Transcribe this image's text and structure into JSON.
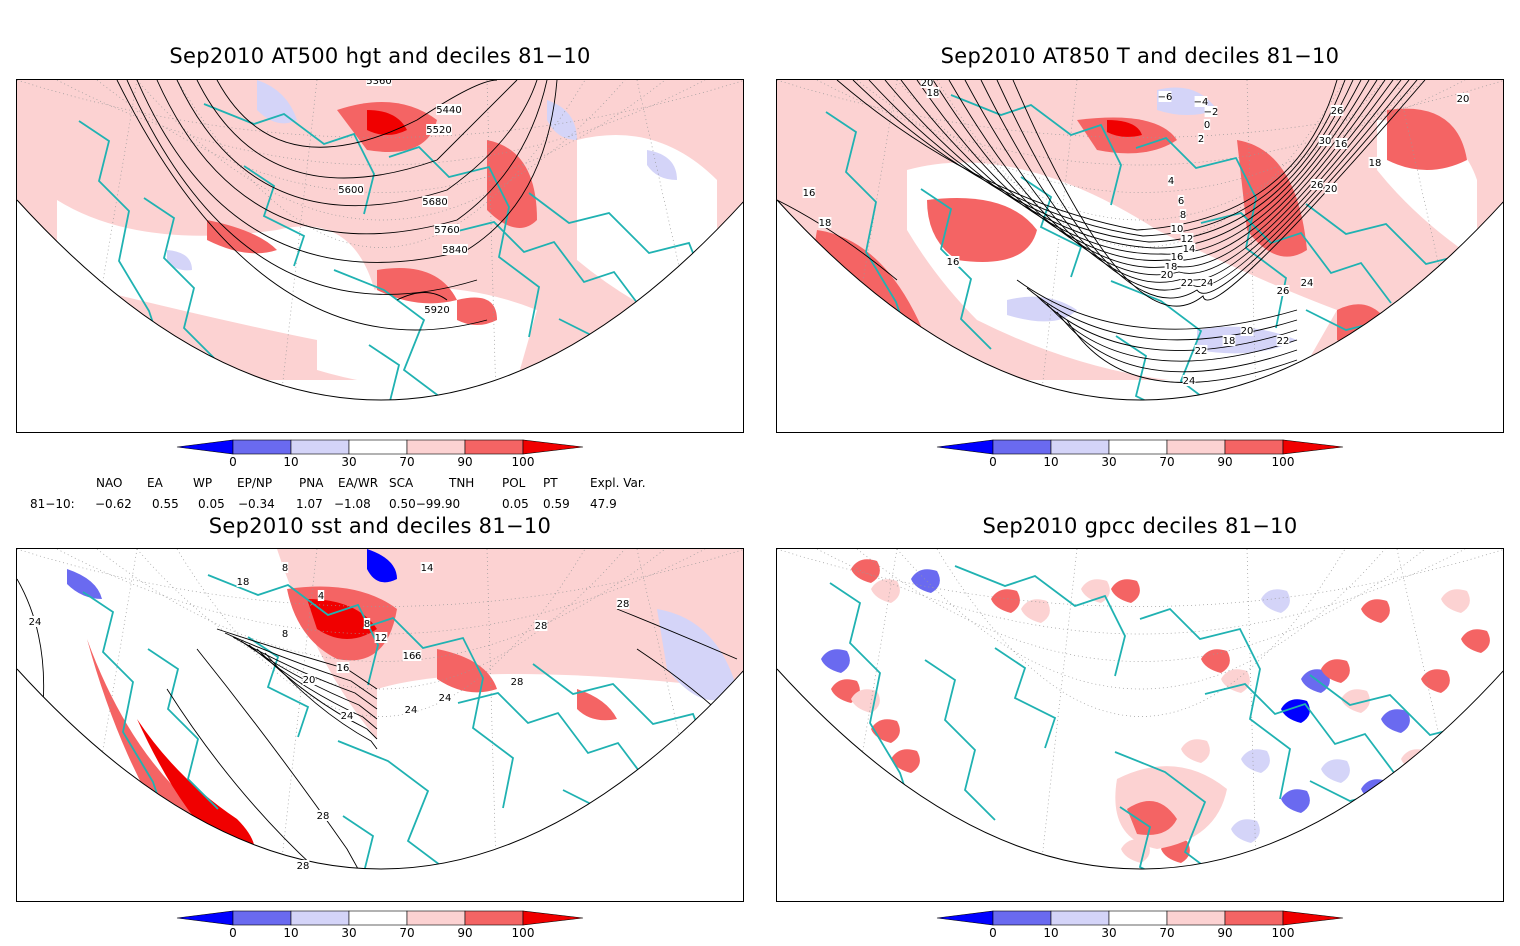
{
  "panels": [
    {
      "title": "Sep2010 AT500 hgt and deciles 81−10",
      "contour_labels": [
        "5360",
        "5440",
        "5520",
        "5600",
        "5680",
        "5760",
        "5840",
        "5920"
      ]
    },
    {
      "title": "Sep2010 AT850 T and deciles 81−10",
      "contour_labels": [
        "20",
        "18",
        "16",
        "18",
        "16",
        "−6",
        "−4",
        "−2",
        "0",
        "2",
        "4",
        "6",
        "8",
        "10",
        "12",
        "14",
        "16",
        "18",
        "20",
        "22",
        "24",
        "26",
        "26",
        "24",
        "22",
        "20",
        "18",
        "22",
        "24",
        "26",
        "30",
        "16",
        "20",
        "18",
        "20"
      ]
    },
    {
      "title": "Sep2010 sst and deciles 81−10",
      "contour_labels": [
        "24",
        "28",
        "18",
        "8",
        "4",
        "8",
        "8",
        "12",
        "16",
        "20",
        "16",
        "24",
        "24",
        "24",
        "28",
        "28",
        "28",
        "28",
        "14",
        "16"
      ]
    },
    {
      "title": "Sep2010 gpcc deciles 81−10",
      "contour_labels": []
    }
  ],
  "colorbar": {
    "labels": [
      "0",
      "10",
      "30",
      "70",
      "90",
      "100"
    ],
    "colors": [
      "#0000ff",
      "#6a6af0",
      "#d4d4f8",
      "#ffffff",
      "#fcd2d2",
      "#f46464",
      "#f00000"
    ]
  },
  "indices": {
    "names": [
      "NAO",
      "EA",
      "WP",
      "EP/NP",
      "PNA",
      "EA/WR",
      "SCA",
      "TNH",
      "POL",
      "PT",
      "Expl. Var."
    ],
    "row_label": "81−10:",
    "values": [
      "−0.62",
      "0.55",
      "0.05",
      "−0.34",
      "1.07",
      "−1.08",
      "0.50−99.90",
      "",
      "0.05",
      "0.59",
      "47.9"
    ]
  }
}
